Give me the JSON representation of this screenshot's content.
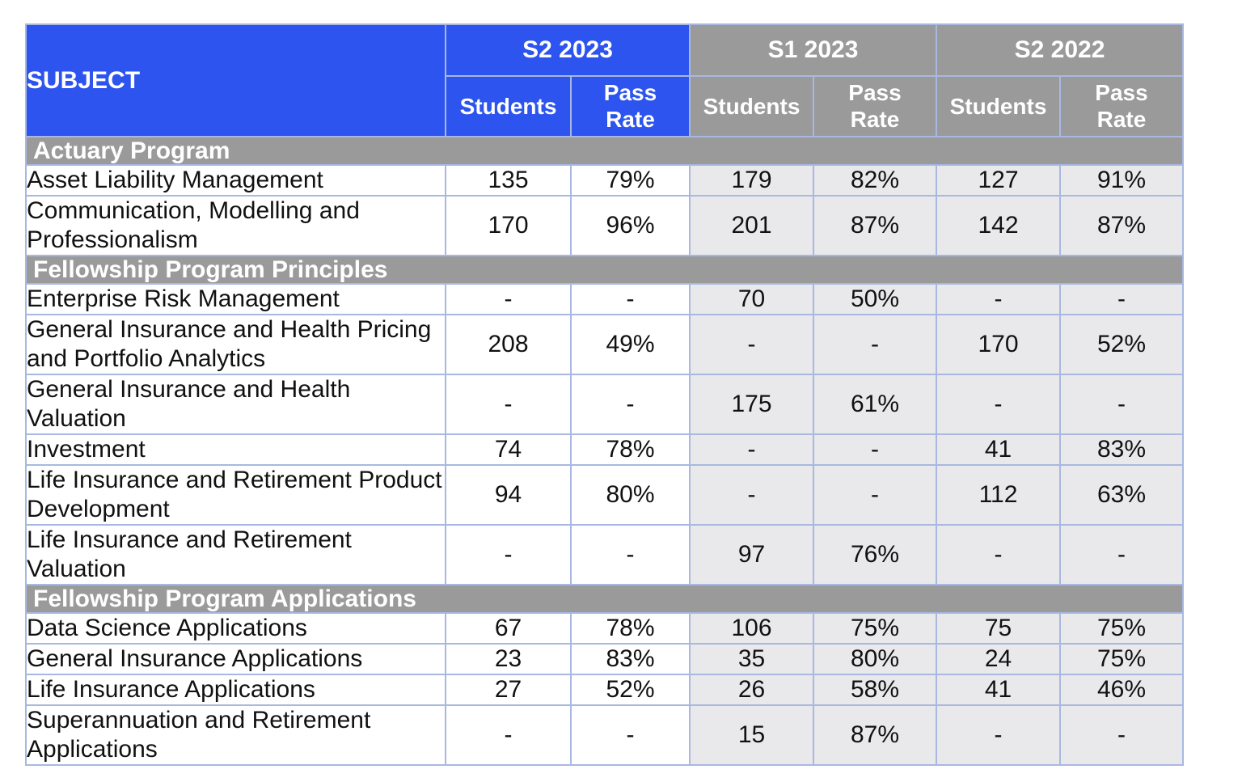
{
  "table": {
    "subject_header": "SUBJECT",
    "column_groups": [
      {
        "label": "S2 2023"
      },
      {
        "label": "S1 2023"
      },
      {
        "label": "S2 2022"
      }
    ],
    "subcolumns": {
      "students": "Students",
      "pass_rate": "Pass Rate"
    }
  },
  "colors": {
    "blue": "#2d54ee",
    "gray": "#9a9a9a",
    "cell_shaded": "#e9e9ec",
    "border_light": "#a8b8e0",
    "border_dark": "#7d92c2",
    "border_header": "#dfe7f7"
  },
  "chart_data": {
    "type": "table",
    "columns": [
      "SUBJECT",
      "S2 2023 Students",
      "S2 2023 Pass Rate",
      "S1 2023 Students",
      "S1 2023 Pass Rate",
      "S2 2022 Students",
      "S2 2022 Pass Rate"
    ],
    "sections": [
      {
        "title": "Actuary Program",
        "rows": [
          {
            "subject": "Asset Liability Management",
            "values": [
              "135",
              "79%",
              "179",
              "82%",
              "127",
              "91%"
            ]
          },
          {
            "subject": "Communication, Modelling and Professionalism",
            "values": [
              "170",
              "96%",
              "201",
              "87%",
              "142",
              "87%"
            ]
          }
        ]
      },
      {
        "title": "Fellowship Program Principles",
        "rows": [
          {
            "subject": "Enterprise Risk Management",
            "values": [
              "-",
              "-",
              "70",
              "50%",
              "-",
              "-"
            ]
          },
          {
            "subject": "General Insurance and Health Pricing and Portfolio Analytics",
            "values": [
              "208",
              "49%",
              "-",
              "-",
              "170",
              "52%"
            ]
          },
          {
            "subject": "General Insurance and Health Valuation",
            "values": [
              "-",
              "-",
              "175",
              "61%",
              "-",
              "-"
            ]
          },
          {
            "subject": "Investment",
            "values": [
              "74",
              "78%",
              "-",
              "-",
              "41",
              "83%"
            ]
          },
          {
            "subject": "Life Insurance and Retirement Product Development",
            "values": [
              "94",
              "80%",
              "-",
              "-",
              "112",
              "63%"
            ]
          },
          {
            "subject": "Life Insurance and Retirement Valuation",
            "values": [
              "-",
              "-",
              "97",
              "76%",
              "-",
              "-"
            ]
          }
        ]
      },
      {
        "title": "Fellowship Program Applications",
        "rows": [
          {
            "subject": "Data Science Applications",
            "values": [
              "67",
              "78%",
              "106",
              "75%",
              "75",
              "75%"
            ]
          },
          {
            "subject": "General Insurance Applications",
            "values": [
              "23",
              "83%",
              "35",
              "80%",
              "24",
              "75%"
            ]
          },
          {
            "subject": "Life Insurance Applications",
            "values": [
              "27",
              "52%",
              "26",
              "58%",
              "41",
              "46%"
            ]
          },
          {
            "subject": "Superannuation and Retirement Applications",
            "values": [
              "-",
              "-",
              "15",
              "87%",
              "-",
              "-"
            ]
          }
        ]
      }
    ]
  }
}
